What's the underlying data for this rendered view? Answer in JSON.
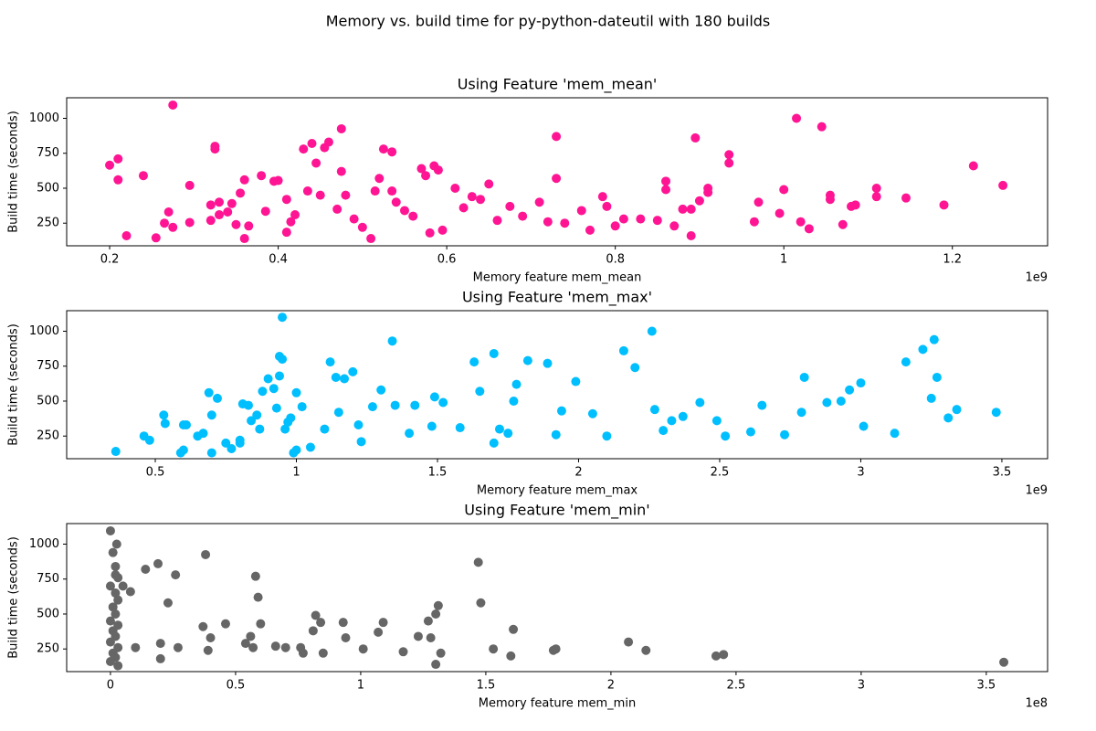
{
  "title": "Memory vs. build time for py-python-dateutil with 180 builds",
  "chart_data": [
    {
      "type": "scatter",
      "title": "Using Feature 'mem_mean'",
      "xlabel": "Memory feature mem_mean",
      "ylabel": "Build time (seconds)",
      "x_offset_label": "1e9",
      "color": "#ff1493",
      "x": [
        0.2,
        0.21,
        0.21,
        0.22,
        0.24,
        0.255,
        0.265,
        0.27,
        0.275,
        0.275,
        0.295,
        0.295,
        0.32,
        0.32,
        0.325,
        0.325,
        0.33,
        0.33,
        0.34,
        0.345,
        0.35,
        0.355,
        0.36,
        0.36,
        0.365,
        0.38,
        0.385,
        0.395,
        0.4,
        0.41,
        0.41,
        0.415,
        0.42,
        0.43,
        0.435,
        0.44,
        0.445,
        0.45,
        0.455,
        0.46,
        0.47,
        0.475,
        0.475,
        0.48,
        0.49,
        0.5,
        0.51,
        0.515,
        0.52,
        0.525,
        0.535,
        0.535,
        0.54,
        0.55,
        0.56,
        0.57,
        0.575,
        0.58,
        0.585,
        0.59,
        0.595,
        0.61,
        0.62,
        0.63,
        0.64,
        0.65,
        0.66,
        0.675,
        0.69,
        0.71,
        0.72,
        0.73,
        0.73,
        0.74,
        0.76,
        0.77,
        0.785,
        0.79,
        0.8,
        0.81,
        0.83,
        0.85,
        0.86,
        0.86,
        0.87,
        0.88,
        0.89,
        0.89,
        0.895,
        0.9,
        0.91,
        0.91,
        0.935,
        0.935,
        0.965,
        0.97,
        0.995,
        1.0,
        1.015,
        1.02,
        1.03,
        1.045,
        1.055,
        1.055,
        1.07,
        1.08,
        1.085,
        1.11,
        1.11,
        1.145,
        1.19,
        1.225,
        1.26
      ],
      "values": [
        665,
        710,
        560,
        160,
        590,
        145,
        250,
        330,
        1095,
        220,
        520,
        255,
        380,
        270,
        800,
        780,
        400,
        310,
        330,
        390,
        240,
        465,
        560,
        140,
        230,
        590,
        335,
        550,
        555,
        420,
        185,
        260,
        310,
        780,
        480,
        820,
        680,
        450,
        790,
        830,
        350,
        925,
        620,
        450,
        280,
        220,
        140,
        480,
        570,
        780,
        760,
        480,
        400,
        340,
        300,
        640,
        590,
        180,
        660,
        630,
        200,
        500,
        360,
        440,
        420,
        530,
        270,
        370,
        300,
        400,
        260,
        870,
        570,
        250,
        340,
        200,
        440,
        370,
        230,
        280,
        280,
        270,
        490,
        550,
        230,
        350,
        350,
        160,
        860,
        410,
        500,
        470,
        740,
        680,
        260,
        400,
        320,
        490,
        1000,
        260,
        210,
        940,
        420,
        450,
        240,
        370,
        380,
        500,
        440,
        430,
        380,
        660,
        520
      ],
      "xlim": [
        0.149,
        1.313
      ],
      "xticks": [
        0.2,
        0.4,
        0.6,
        0.8,
        1.0,
        1.2
      ],
      "ylim": [
        88,
        1147
      ],
      "yticks": [
        250,
        500,
        750,
        1000
      ]
    },
    {
      "type": "scatter",
      "title": "Using Feature 'mem_max'",
      "xlabel": "Memory feature mem_max",
      "ylabel": "Build time (seconds)",
      "x_offset_label": "1e9",
      "color": "#00bfff",
      "x": [
        0.36,
        0.46,
        0.48,
        0.53,
        0.535,
        0.59,
        0.6,
        0.6,
        0.61,
        0.65,
        0.67,
        0.69,
        0.7,
        0.7,
        0.72,
        0.75,
        0.77,
        0.8,
        0.8,
        0.81,
        0.83,
        0.84,
        0.86,
        0.87,
        0.88,
        0.9,
        0.92,
        0.93,
        0.94,
        0.94,
        0.95,
        0.96,
        0.97,
        0.98,
        0.99,
        1.0,
        1.0,
        1.02,
        1.05,
        1.1,
        1.12,
        1.14,
        1.15,
        1.17,
        1.2,
        1.22,
        1.23,
        1.27,
        1.3,
        1.34,
        1.35,
        1.4,
        1.42,
        1.48,
        1.49,
        1.52,
        1.58,
        1.63,
        1.65,
        1.7,
        1.72,
        1.75,
        1.77,
        1.78,
        1.82,
        1.89,
        1.92,
        1.94,
        1.99,
        2.05,
        2.1,
        2.16,
        2.2,
        2.26,
        2.27,
        2.3,
        2.33,
        2.37,
        2.43,
        2.49,
        2.52,
        2.61,
        2.65,
        2.73,
        2.79,
        2.8,
        2.88,
        2.93,
        2.96,
        3.0,
        3.01,
        3.12,
        3.16,
        3.22,
        3.25,
        3.26,
        3.27,
        3.31,
        3.34,
        3.48,
        0.95,
        1.7
      ],
      "values": [
        140,
        250,
        220,
        400,
        340,
        130,
        150,
        330,
        330,
        250,
        270,
        560,
        400,
        130,
        520,
        200,
        160,
        200,
        220,
        480,
        470,
        360,
        400,
        300,
        570,
        660,
        590,
        450,
        820,
        680,
        800,
        300,
        350,
        380,
        130,
        560,
        150,
        460,
        170,
        300,
        780,
        670,
        420,
        660,
        710,
        330,
        210,
        460,
        580,
        930,
        470,
        270,
        470,
        320,
        530,
        490,
        310,
        780,
        570,
        200,
        300,
        270,
        500,
        620,
        790,
        770,
        260,
        430,
        640,
        410,
        250,
        860,
        740,
        1000,
        440,
        290,
        360,
        390,
        490,
        360,
        250,
        280,
        470,
        260,
        420,
        670,
        490,
        500,
        580,
        630,
        320,
        270,
        780,
        870,
        520,
        940,
        670,
        380,
        440,
        420,
        1100,
        840
      ],
      "xlim": [
        0.186,
        3.662
      ],
      "xticks": [
        0.5,
        1.0,
        1.5,
        2.0,
        2.5,
        3.0,
        3.5
      ],
      "ylim": [
        88,
        1147
      ],
      "yticks": [
        250,
        500,
        750,
        1000
      ]
    },
    {
      "type": "scatter",
      "title": "Using Feature 'mem_min'",
      "xlabel": "Memory feature mem_min",
      "ylabel": "Build time (seconds)",
      "x_offset_label": "1e8",
      "color": "#666666",
      "x": [
        0.0,
        0.01,
        0.02,
        0.02,
        0.025,
        0.03,
        0.0,
        0.02,
        0.03,
        0.01,
        0.02,
        0.0,
        0.03,
        0.01,
        0.02,
        0.0,
        0.03,
        0.01,
        0.02,
        0.0,
        0.03,
        0.05,
        0.08,
        0.1,
        0.14,
        0.19,
        0.2,
        0.2,
        0.23,
        0.26,
        0.27,
        0.38,
        0.37,
        0.39,
        0.4,
        0.46,
        0.54,
        0.56,
        0.57,
        0.58,
        0.59,
        0.6,
        0.66,
        0.7,
        0.76,
        0.77,
        0.81,
        0.82,
        0.84,
        0.85,
        0.93,
        0.94,
        1.01,
        1.07,
        1.09,
        1.17,
        1.23,
        1.27,
        1.28,
        1.3,
        1.3,
        1.31,
        1.32,
        1.47,
        1.48,
        1.53,
        1.6,
        1.61,
        1.77,
        1.78,
        2.07,
        2.14,
        2.42,
        2.45,
        3.57
      ],
      "values": [
        1095,
        940,
        840,
        780,
        1000,
        760,
        700,
        650,
        600,
        550,
        500,
        450,
        420,
        380,
        340,
        300,
        260,
        220,
        190,
        160,
        130,
        700,
        660,
        260,
        820,
        860,
        180,
        290,
        580,
        780,
        260,
        925,
        410,
        240,
        330,
        430,
        290,
        340,
        260,
        770,
        620,
        430,
        270,
        260,
        260,
        220,
        380,
        490,
        440,
        220,
        440,
        330,
        250,
        370,
        440,
        230,
        340,
        450,
        330,
        140,
        500,
        560,
        220,
        870,
        580,
        250,
        200,
        390,
        240,
        250,
        300,
        240,
        200,
        210,
        155
      ],
      "xlim": [
        -0.175,
        3.745
      ],
      "xticks": [
        0.0,
        0.5,
        1.0,
        1.5,
        2.0,
        2.5,
        3.0,
        3.5
      ],
      "ylim": [
        88,
        1147
      ],
      "yticks": [
        250,
        500,
        750,
        1000
      ]
    }
  ]
}
